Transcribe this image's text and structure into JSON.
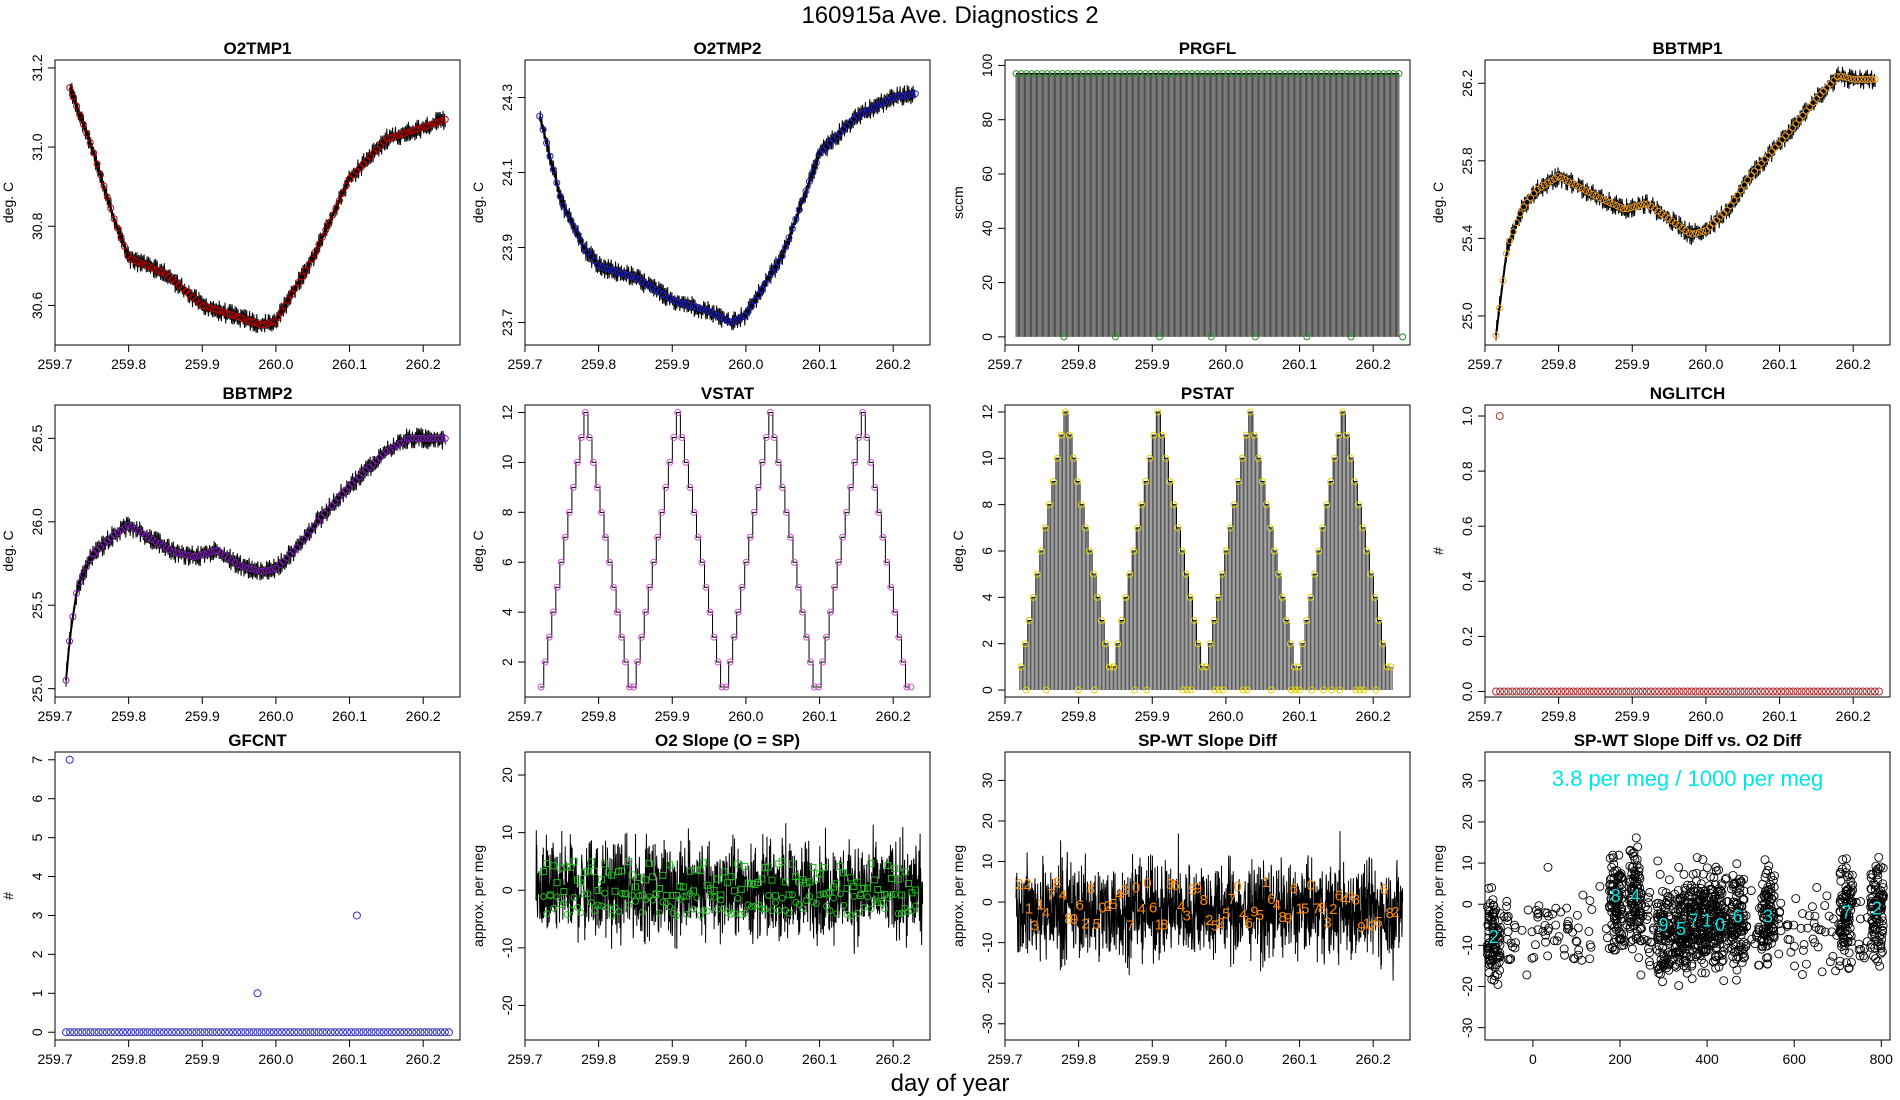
{
  "page": {
    "title": "160915a   Ave. Diagnostics 2",
    "xlabel": "day of year"
  },
  "chart_data": [
    {
      "panel": "o2tmp1",
      "title": "O2TMP1",
      "ylabel": "deg. C",
      "type": "line",
      "x_ticks": [
        "259.7",
        "259.8",
        "259.9",
        "260.0",
        "260.1",
        "260.2"
      ],
      "xlim": [
        259.7,
        260.25
      ],
      "ylim": [
        30.5,
        31.22
      ],
      "y_ticks": [
        "30.6",
        "30.8",
        "31.0",
        "31.2"
      ],
      "y_tick_values": [
        30.6,
        30.8,
        31.0,
        31.2
      ],
      "marker_color": "#c00000",
      "series": [
        {
          "x": [
            259.72,
            259.75,
            259.78,
            259.8,
            259.85,
            259.9,
            259.95,
            259.98,
            260.0,
            260.05,
            260.1,
            260.15,
            260.2,
            260.23
          ],
          "y": [
            31.15,
            31.0,
            30.82,
            30.72,
            30.68,
            30.6,
            30.57,
            30.55,
            30.56,
            30.72,
            30.92,
            31.02,
            31.05,
            31.07
          ]
        }
      ]
    },
    {
      "panel": "o2tmp2",
      "title": "O2TMP2",
      "ylabel": "deg. C",
      "type": "line",
      "x_ticks": [
        "259.7",
        "259.8",
        "259.9",
        "260.0",
        "260.1",
        "260.2"
      ],
      "xlim": [
        259.7,
        260.25
      ],
      "ylim": [
        23.64,
        24.4
      ],
      "y_ticks": [
        "23.7",
        "23.9",
        "24.1",
        "24.3"
      ],
      "y_tick_values": [
        23.7,
        23.9,
        24.1,
        24.3
      ],
      "marker_color": "#2020c0",
      "series": [
        {
          "x": [
            259.72,
            259.75,
            259.78,
            259.8,
            259.85,
            259.9,
            259.95,
            259.98,
            260.0,
            260.05,
            260.1,
            260.15,
            260.2,
            260.23
          ],
          "y": [
            24.25,
            24.02,
            23.9,
            23.85,
            23.82,
            23.76,
            23.73,
            23.7,
            23.72,
            23.88,
            24.15,
            24.25,
            24.3,
            24.31
          ]
        }
      ]
    },
    {
      "panel": "prgfl",
      "title": "PRGFL",
      "ylabel": "sccm",
      "type": "spikes",
      "x_ticks": [
        "259.7",
        "259.8",
        "259.9",
        "260.0",
        "260.1",
        "260.2"
      ],
      "xlim": [
        259.7,
        260.25
      ],
      "ylim": [
        -3,
        102
      ],
      "y_ticks": [
        "0",
        "20",
        "40",
        "60",
        "80",
        "100"
      ],
      "y_tick_values": [
        0,
        20,
        40,
        60,
        80,
        100
      ],
      "marker_color": "#2a8a2a",
      "high": 97,
      "low": 0,
      "count": 75,
      "zero_x": [
        259.78,
        259.85,
        259.91,
        259.98,
        260.04,
        260.11,
        260.17,
        260.24
      ]
    },
    {
      "panel": "bbtmp1",
      "title": "BBTMP1",
      "ylabel": "deg. C",
      "type": "line",
      "x_ticks": [
        "259.7",
        "259.8",
        "259.9",
        "260.0",
        "260.1",
        "260.2"
      ],
      "xlim": [
        259.7,
        260.25
      ],
      "ylim": [
        24.85,
        26.32
      ],
      "y_ticks": [
        "25.0",
        "25.4",
        "25.8",
        "26.2"
      ],
      "y_tick_values": [
        25.0,
        25.4,
        25.8,
        26.2
      ],
      "marker_color": "#f0a020",
      "series": [
        {
          "x": [
            259.715,
            259.72,
            259.73,
            259.75,
            259.77,
            259.8,
            259.83,
            259.86,
            259.89,
            259.92,
            259.95,
            259.98,
            260.0,
            260.03,
            260.06,
            260.09,
            260.12,
            260.15,
            260.18,
            260.2,
            260.23
          ],
          "y": [
            24.9,
            25.05,
            25.35,
            25.55,
            25.65,
            25.72,
            25.66,
            25.6,
            25.55,
            25.58,
            25.5,
            25.42,
            25.44,
            25.55,
            25.72,
            25.85,
            25.98,
            26.12,
            26.24,
            26.22,
            26.22
          ]
        }
      ]
    },
    {
      "panel": "bbtmp2",
      "title": "BBTMP2",
      "ylabel": "deg. C",
      "type": "line",
      "x_ticks": [
        "259.7",
        "259.8",
        "259.9",
        "260.0",
        "260.1",
        "260.2"
      ],
      "xlim": [
        259.7,
        260.25
      ],
      "ylim": [
        24.95,
        26.7
      ],
      "y_ticks": [
        "25.0",
        "25.5",
        "26.0",
        "26.5"
      ],
      "y_tick_values": [
        25.0,
        25.5,
        26.0,
        26.5
      ],
      "marker_color": "#7a1fb0",
      "series": [
        {
          "x": [
            259.715,
            259.72,
            259.73,
            259.75,
            259.78,
            259.8,
            259.83,
            259.86,
            259.89,
            259.92,
            259.95,
            259.98,
            260.0,
            260.03,
            260.06,
            260.09,
            260.12,
            260.15,
            260.18,
            260.2,
            260.23
          ],
          "y": [
            25.05,
            25.3,
            25.6,
            25.8,
            25.92,
            25.98,
            25.9,
            25.82,
            25.79,
            25.83,
            25.74,
            25.7,
            25.72,
            25.85,
            26.02,
            26.17,
            26.3,
            26.42,
            26.5,
            26.5,
            26.5
          ]
        }
      ]
    },
    {
      "panel": "vstat",
      "title": "VSTAT",
      "ylabel": "deg. C",
      "type": "step",
      "x_ticks": [
        "259.7",
        "259.8",
        "259.9",
        "260.0",
        "260.1",
        "260.2"
      ],
      "xlim": [
        259.7,
        260.25
      ],
      "ylim": [
        0.6,
        12.3
      ],
      "y_ticks": [
        "2",
        "4",
        "6",
        "8",
        "10",
        "12"
      ],
      "y_tick_values": [
        2,
        4,
        6,
        8,
        10,
        12
      ],
      "marker_color": "#cc55cc",
      "high": 12,
      "low": 1,
      "cycles": 4,
      "period": 0.131,
      "start": 259.72
    },
    {
      "panel": "pstat",
      "title": "PSTAT",
      "ylabel": "deg. C",
      "type": "step-spikes",
      "x_ticks": [
        "259.7",
        "259.8",
        "259.9",
        "260.0",
        "260.1",
        "260.2"
      ],
      "xlim": [
        259.7,
        260.25
      ],
      "ylim": [
        -0.3,
        12.3
      ],
      "y_ticks": [
        "0",
        "2",
        "4",
        "6",
        "8",
        "10",
        "12"
      ],
      "y_tick_values": [
        0,
        2,
        4,
        6,
        8,
        10,
        12
      ],
      "marker_color": "#e0d000",
      "high": 12,
      "low": 1,
      "cycles": 4,
      "period": 0.131,
      "start": 259.72
    },
    {
      "panel": "nglitch",
      "title": "NGLITCH",
      "ylabel": "#",
      "type": "scatter",
      "x_ticks": [
        "259.7",
        "259.8",
        "259.9",
        "260.0",
        "260.1",
        "260.2"
      ],
      "xlim": [
        259.7,
        260.25
      ],
      "ylim": [
        -0.02,
        1.04
      ],
      "y_ticks": [
        "0.0",
        "0.2",
        "0.4",
        "0.6",
        "0.8",
        "1.0"
      ],
      "y_tick_values": [
        0,
        0.2,
        0.4,
        0.6,
        0.8,
        1.0
      ],
      "marker_color": "#b03030",
      "baseline": 0,
      "outliers": [
        {
          "x": 259.72,
          "y": 1
        }
      ],
      "count": 95
    },
    {
      "panel": "gfcnt",
      "title": "GFCNT",
      "ylabel": "#",
      "type": "scatter",
      "x_ticks": [
        "259.7",
        "259.8",
        "259.9",
        "260.0",
        "260.1",
        "260.2"
      ],
      "xlim": [
        259.7,
        260.25
      ],
      "ylim": [
        -0.2,
        7.2
      ],
      "y_ticks": [
        "0",
        "1",
        "2",
        "3",
        "4",
        "5",
        "6",
        "7"
      ],
      "y_tick_values": [
        0,
        1,
        2,
        3,
        4,
        5,
        6,
        7
      ],
      "marker_color": "#3030c0",
      "baseline": 0,
      "outliers": [
        {
          "x": 259.72,
          "y": 7
        },
        {
          "x": 259.975,
          "y": 1
        },
        {
          "x": 260.11,
          "y": 3
        }
      ],
      "count": 95
    },
    {
      "panel": "o2slope",
      "title": "O2 Slope (O = SP)",
      "ylabel": "approx. per meg",
      "type": "noise",
      "x_ticks": [
        "259.7",
        "259.8",
        "259.9",
        "260.0",
        "260.1",
        "260.2"
      ],
      "xlim": [
        259.7,
        260.25
      ],
      "ylim": [
        -26,
        24
      ],
      "y_ticks": [
        "-20",
        "-10",
        "0",
        "10",
        "20"
      ],
      "y_tick_values": [
        -20,
        -10,
        0,
        10,
        20
      ],
      "marker_color": "#22bb22",
      "center": 0,
      "spread": 7
    },
    {
      "panel": "spwt",
      "title": "SP-WT Slope Diff",
      "ylabel": "approx. per meg",
      "type": "noise",
      "x_ticks": [
        "259.7",
        "259.8",
        "259.9",
        "260.0",
        "260.1",
        "260.2"
      ],
      "xlim": [
        259.7,
        260.25
      ],
      "ylim": [
        -34,
        37
      ],
      "y_ticks": [
        "-30",
        "-20",
        "-10",
        "0",
        "10",
        "20",
        "30"
      ],
      "y_tick_values": [
        -30,
        -20,
        -10,
        0,
        10,
        20,
        30
      ],
      "marker_color": "#ff8800",
      "center": -2,
      "spread": 10,
      "labels": [
        "22",
        "1",
        "3",
        "1",
        "4",
        "7",
        "8",
        "4",
        "8",
        "9",
        "6",
        "2",
        "8",
        "5",
        "0",
        "2",
        "5",
        "4",
        "3",
        "7",
        "0",
        "4",
        "0",
        "6",
        "1",
        "8",
        "3",
        "6",
        "4",
        "3",
        "5",
        "9",
        "8",
        "2",
        "5",
        "2",
        "5",
        "7",
        "0",
        "4",
        "6",
        "9",
        "5",
        "1",
        "6",
        "4",
        "8",
        "9",
        "6",
        "1",
        "5",
        "0",
        "7",
        "8",
        "3",
        "2",
        "6",
        "4",
        "7",
        "8",
        "9",
        "1",
        "2",
        "5",
        "6",
        "8",
        "2"
      ]
    },
    {
      "panel": "spwt-vs-o2",
      "title": "SP-WT Slope Diff vs. O2 Diff",
      "ylabel": "approx. per meg",
      "type": "cluster-scatter",
      "x_ticks": [
        "0",
        "200",
        "400",
        "600",
        "800"
      ],
      "x_tick_values": [
        0,
        200,
        400,
        600,
        800
      ],
      "xlim": [
        -110,
        820
      ],
      "ylim": [
        -33,
        37
      ],
      "y_ticks": [
        "-30",
        "-20",
        "-10",
        "0",
        "10",
        "20",
        "30"
      ],
      "y_tick_values": [
        -30,
        -20,
        -10,
        0,
        10,
        20,
        30
      ],
      "marker_color": "#00e5e5",
      "annotation": "3.8 per meg / 1000 per meg",
      "clusters": [
        {
          "x": -90,
          "y": -8
        },
        {
          "x": 190,
          "y": 2
        },
        {
          "x": 235,
          "y": 2
        },
        {
          "x": 300,
          "y": -5
        },
        {
          "x": 340,
          "y": -6
        },
        {
          "x": 370,
          "y": -4
        },
        {
          "x": 400,
          "y": -4
        },
        {
          "x": 430,
          "y": -5
        },
        {
          "x": 470,
          "y": -3
        },
        {
          "x": 540,
          "y": -3
        },
        {
          "x": 720,
          "y": -2
        },
        {
          "x": 790,
          "y": -1
        }
      ],
      "cluster_labels": [
        "2",
        "8",
        "4",
        "9",
        "5",
        "7",
        "1",
        "0",
        "6",
        "3",
        "7",
        "2"
      ]
    }
  ]
}
